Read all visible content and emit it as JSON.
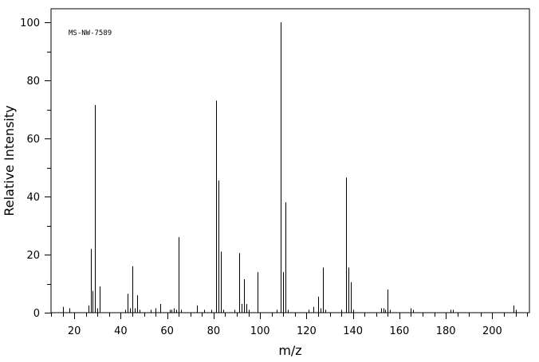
{
  "chart_data": {
    "type": "bar",
    "title": "",
    "annotation": "MS-NW-7589",
    "xlabel": "m/z",
    "ylabel": "Relative Intensity",
    "xlim": [
      10,
      216
    ],
    "ylim": [
      0,
      100
    ],
    "x_ticks": [
      20,
      40,
      60,
      80,
      100,
      120,
      140,
      160,
      180,
      200
    ],
    "y_ticks": [
      0,
      20,
      40,
      60,
      80,
      100
    ],
    "x_ticks_minor_step": 5,
    "y_ticks_minor_step": 10,
    "grid": false,
    "bar_color": "#000000",
    "series": [
      {
        "values": [
          [
            15,
            2.0
          ],
          [
            18,
            1.5
          ],
          [
            26,
            2.5
          ],
          [
            27,
            22.0
          ],
          [
            28,
            7.5
          ],
          [
            29,
            71.5
          ],
          [
            30,
            1.5
          ],
          [
            31,
            9.0
          ],
          [
            42,
            1.0
          ],
          [
            43,
            6.5
          ],
          [
            44,
            1.5
          ],
          [
            45,
            16.0
          ],
          [
            46,
            1.5
          ],
          [
            47,
            6.0
          ],
          [
            48,
            1.0
          ],
          [
            53,
            1.0
          ],
          [
            55,
            1.5
          ],
          [
            57,
            3.0
          ],
          [
            61,
            1.0
          ],
          [
            62,
            1.0
          ],
          [
            63,
            1.5
          ],
          [
            64,
            1.0
          ],
          [
            65,
            26.0
          ],
          [
            66,
            1.0
          ],
          [
            73,
            2.5
          ],
          [
            76,
            1.0
          ],
          [
            79,
            1.0
          ],
          [
            81,
            73.0
          ],
          [
            82,
            45.5
          ],
          [
            83,
            21.0
          ],
          [
            84,
            1.0
          ],
          [
            89,
            1.0
          ],
          [
            91,
            20.5
          ],
          [
            92,
            3.0
          ],
          [
            93,
            11.5
          ],
          [
            94,
            3.0
          ],
          [
            95,
            1.0
          ],
          [
            99,
            14.0
          ],
          [
            107,
            1.0
          ],
          [
            109,
            100.0
          ],
          [
            110,
            14.0
          ],
          [
            111,
            38.0
          ],
          [
            112,
            1.0
          ],
          [
            121,
            1.0
          ],
          [
            123,
            2.0
          ],
          [
            125,
            5.5
          ],
          [
            126,
            1.5
          ],
          [
            127,
            15.5
          ],
          [
            128,
            1.0
          ],
          [
            135,
            1.0
          ],
          [
            137,
            46.5
          ],
          [
            138,
            15.5
          ],
          [
            139,
            10.5
          ],
          [
            140,
            1.0
          ],
          [
            152,
            1.5
          ],
          [
            153,
            1.5
          ],
          [
            154,
            1.0
          ],
          [
            155,
            8.0
          ],
          [
            156,
            1.0
          ],
          [
            165,
            1.5
          ],
          [
            166,
            1.0
          ],
          [
            182,
            1.0
          ],
          [
            183,
            1.0
          ],
          [
            209,
            2.5
          ],
          [
            210,
            1.0
          ]
        ]
      }
    ]
  }
}
